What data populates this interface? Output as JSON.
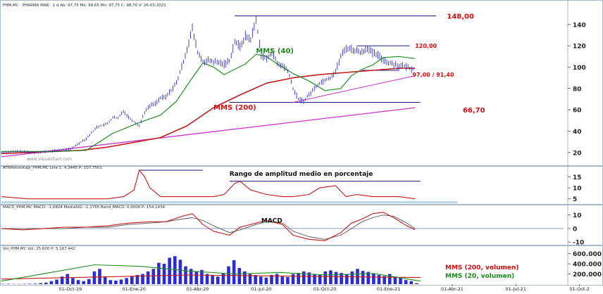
{
  "headers": {
    "price": "PHM.MC · PHARMA MAR · 1 d  Ab: 97,75  Mx: 99,65  Mn: 97,75  C: 98,70  V: 26-03-2021",
    "atr": "ATRPorcentaje_PHM.MC Line 1: 4,3445  P: 107,7501",
    "macd": "MACD_PHM.MC MACD: -1,0824  MediaSIG: -1,1765  Band_MACD: 0,0000  P: 154,1434",
    "vol": "Vol_PHM.MC  Vol: 25.600  P: 5.167.442"
  },
  "watermark": "www.visualchart.com",
  "colors": {
    "price": "#1a1aa6",
    "mms40": "#1f8f1f",
    "mms200": "#c41b1b",
    "trend": "#cc33cc",
    "levels": "#1a1a7a",
    "atr": "#c41b1b",
    "macd": "#c41b1b",
    "signal": "#555555",
    "volbar": "#2b2bd6",
    "annot_red": "#d01010",
    "annot_green": "#1a8a1a",
    "annot_dark": "#111111"
  },
  "chart_data": [
    {
      "type": "line",
      "panel": "price",
      "title": "",
      "x_ticks": [
        "01-Oct-19",
        "01-Ene-20",
        "01-Abr-20",
        "01-Jul-20",
        "01-Oct-20",
        "01-Ene-21",
        "01-Abr-21",
        "01-Jul-21",
        "01-Oct-2"
      ],
      "y_ticks": [
        20,
        40,
        60,
        80,
        100,
        120,
        140
      ],
      "ylim": [
        10,
        155
      ],
      "series": [
        {
          "name": "",
          "x": [
            0,
            3,
            6,
            9,
            11,
            13,
            15,
            16,
            18,
            20,
            21,
            22,
            23,
            24,
            26,
            27,
            28,
            29,
            30,
            31,
            33,
            34,
            35,
            36,
            37,
            38,
            39,
            40,
            41,
            42,
            43,
            44,
            45,
            46,
            47,
            48,
            49,
            50,
            51,
            52,
            53,
            54,
            55,
            56,
            57,
            58,
            59,
            60,
            61,
            62,
            63,
            64,
            65,
            66,
            67,
            68,
            69,
            70,
            71,
            72,
            73,
            74,
            75,
            76,
            77,
            78
          ],
          "values": [
            20,
            21,
            20,
            21,
            22,
            23,
            30,
            33,
            44,
            47,
            53,
            52,
            59,
            53,
            45,
            58,
            64,
            66,
            71,
            72,
            85,
            100,
            117,
            136,
            114,
            105,
            106,
            105,
            104,
            103,
            106,
            124,
            119,
            129,
            126,
            144,
            112,
            107,
            115,
            103,
            101,
            97,
            80,
            70,
            68,
            74,
            80,
            85,
            88,
            90,
            96,
            110,
            118,
            117,
            115,
            114,
            118,
            113,
            111,
            107,
            104,
            103,
            101,
            101,
            99,
            98
          ]
        },
        {
          "name": "MMS (40)",
          "x": [
            0,
            10,
            16,
            21,
            26,
            30,
            33,
            36,
            38,
            40,
            42,
            44,
            46,
            48,
            50,
            52,
            55,
            58,
            61,
            64,
            66,
            68,
            70,
            72,
            75,
            78
          ],
          "values": [
            21,
            21,
            22,
            38,
            48,
            55,
            68,
            90,
            104,
            100,
            93,
            98,
            103,
            112,
            110,
            103,
            94,
            87,
            78,
            80,
            92,
            98,
            102,
            109,
            110,
            108
          ]
        },
        {
          "name": "MMS (200)",
          "x": [
            0,
            15,
            20,
            30,
            35,
            40,
            45,
            50,
            55,
            60,
            65,
            70,
            75,
            78
          ],
          "values": [
            19,
            22,
            25,
            34,
            45,
            62,
            74,
            85,
            90,
            93,
            95,
            97,
            99,
            99
          ]
        },
        {
          "name": "",
          "x": [
            0,
            78
          ],
          "values": [
            16,
            62
          ]
        },
        {
          "name": "",
          "x": [
            55,
            78
          ],
          "values": [
            67,
            92
          ]
        }
      ],
      "annotations": [
        {
          "text": "148,00",
          "value": 148
        },
        {
          "text": "120,00",
          "value": 120
        },
        {
          "text": "97,00 / 91,40",
          "value": 97
        },
        {
          "text": "66,70",
          "value": 66.7
        },
        {
          "text": "MMS (40)"
        },
        {
          "text": "MMS (200)"
        }
      ]
    },
    {
      "type": "line",
      "panel": "atr",
      "y_ticks": [
        5,
        10,
        15
      ],
      "ylim": [
        3,
        18
      ],
      "series": [
        {
          "name": "",
          "x": [
            0,
            5,
            10,
            15,
            20,
            23,
            25,
            26,
            27,
            28,
            30,
            33,
            36,
            40,
            42,
            44,
            45,
            47,
            50,
            53,
            55,
            58,
            60,
            63,
            65,
            67,
            70,
            72,
            75,
            78
          ],
          "values": [
            6,
            5,
            5,
            5,
            5,
            6,
            9,
            18,
            15,
            10,
            6,
            6,
            6,
            6,
            7,
            12,
            13,
            9,
            7,
            6,
            6,
            7,
            10,
            11,
            6,
            7,
            6,
            6,
            6,
            5
          ]
        }
      ],
      "annotations": [
        {
          "text": "Rango de amplitud medio en porcentaje"
        }
      ]
    },
    {
      "type": "line",
      "panel": "macd",
      "y_ticks": [
        -10,
        0,
        10
      ],
      "ylim": [
        -12,
        14
      ],
      "series": [
        {
          "name": "",
          "x": [
            0,
            4,
            8,
            12,
            16,
            20,
            24,
            28,
            31,
            34,
            36,
            38,
            40,
            43,
            45,
            48,
            50,
            53,
            55,
            58,
            61,
            64,
            66,
            68,
            70,
            72,
            74,
            76,
            78
          ],
          "values": [
            0,
            -1,
            0,
            1,
            1,
            2,
            4,
            5,
            5,
            9,
            11,
            3,
            -2,
            -5,
            1,
            4,
            6,
            3,
            -5,
            -8,
            -9,
            -3,
            4,
            7,
            11,
            12,
            8,
            3,
            -1
          ]
        },
        {
          "name": "",
          "x": [
            0,
            4,
            8,
            12,
            16,
            20,
            24,
            28,
            31,
            34,
            36,
            38,
            40,
            43,
            45,
            48,
            50,
            53,
            55,
            58,
            61,
            64,
            66,
            68,
            70,
            72,
            74,
            76,
            78
          ],
          "values": [
            0,
            0,
            0,
            0,
            1,
            1,
            3,
            4,
            5,
            7,
            8,
            6,
            2,
            -3,
            -1,
            3,
            5,
            4,
            -2,
            -6,
            -8,
            -5,
            0,
            5,
            8,
            10,
            9,
            5,
            0
          ]
        }
      ],
      "annotations": [
        {
          "text": "MACD"
        }
      ]
    },
    {
      "type": "bar",
      "panel": "volume",
      "y_ticks": [
        200000,
        400000,
        600000
      ],
      "y_tick_labels": [
        "200.000",
        "400.000",
        "600.000"
      ],
      "ylim": [
        0,
        650000
      ],
      "values": [
        5000,
        6000,
        4000,
        5000,
        7000,
        8000,
        10000,
        20000,
        30000,
        60000,
        90000,
        150000,
        200000,
        120000,
        80000,
        60000,
        100000,
        250000,
        300000,
        150000,
        80000,
        70000,
        90000,
        120000,
        150000,
        180000,
        200000,
        250000,
        300000,
        420000,
        400000,
        520000,
        550000,
        480000,
        350000,
        300000,
        250000,
        280000,
        200000,
        180000,
        150000,
        220000,
        350000,
        470000,
        320000,
        250000,
        200000,
        180000,
        150000,
        130000,
        180000,
        200000,
        150000,
        140000,
        200000,
        220000,
        250000,
        230000,
        200000,
        180000,
        250000,
        270000,
        240000,
        220000,
        200000,
        250000,
        300000,
        260000,
        240000,
        200000,
        180000,
        160000,
        200000,
        150000,
        120000,
        80000,
        60000,
        20000
      ],
      "series_lines": [
        {
          "name": "MMS (200, volumen)",
          "values": [
            100000,
            120000,
            140000,
            160000,
            180000,
            170000,
            160000,
            150000,
            140000,
            130000
          ]
        },
        {
          "name": "MMS (20, volumen)",
          "values": [
            60000,
            220000,
            380000,
            350000,
            260000,
            200000,
            230000,
            180000,
            210000,
            60000
          ]
        }
      ]
    }
  ]
}
